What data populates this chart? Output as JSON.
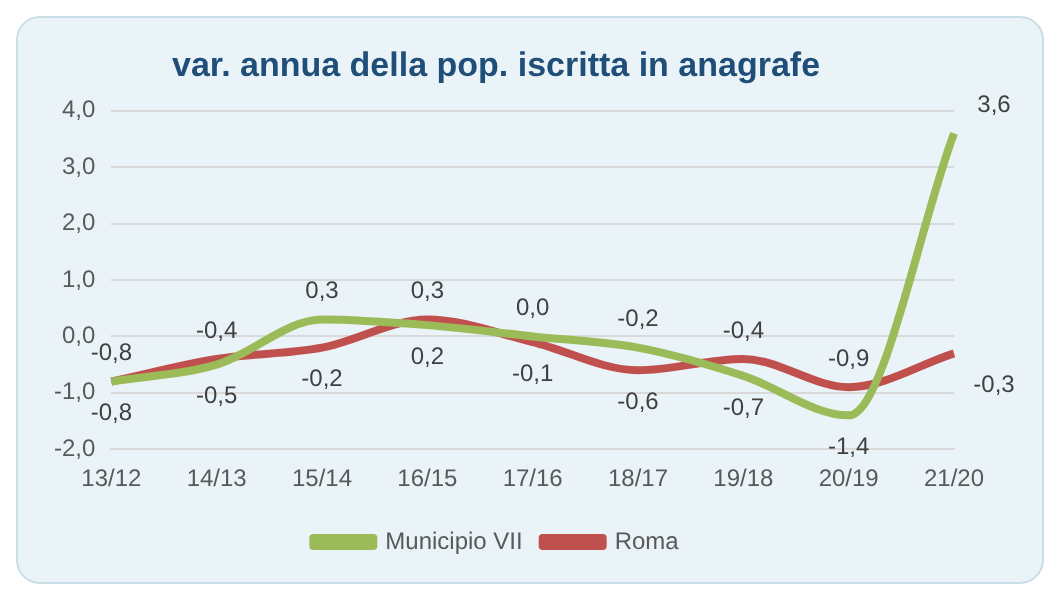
{
  "chart_data": {
    "type": "line",
    "title": "var. annua della pop. iscritta in anagrafe",
    "categories": [
      "13/12",
      "14/13",
      "15/14",
      "16/15",
      "17/16",
      "18/17",
      "19/18",
      "20/19",
      "21/20"
    ],
    "series": [
      {
        "name": "Municipio VII",
        "color": "#9bbb59",
        "values": [
          -0.8,
          -0.5,
          0.3,
          0.2,
          0.0,
          -0.2,
          -0.7,
          -1.4,
          3.6
        ],
        "value_labels": [
          "-0,8",
          "-0,5",
          "0,3",
          "0,2",
          "0,0",
          "-0,2",
          "-0,7",
          "-1,4",
          "3,6"
        ]
      },
      {
        "name": "Roma",
        "color": "#c0504d",
        "values": [
          -0.8,
          -0.4,
          -0.2,
          0.3,
          -0.1,
          -0.6,
          -0.4,
          -0.9,
          -0.3
        ],
        "value_labels": [
          "-0,8",
          "-0,4",
          "-0,2",
          "0,3",
          "-0,1",
          "-0,6",
          "-0,4",
          "-0,9",
          "-0,3"
        ]
      }
    ],
    "ylim": [
      -2,
      4
    ],
    "yticks": [
      {
        "value": -2,
        "label": "-2,0"
      },
      {
        "value": -1,
        "label": "-1,0"
      },
      {
        "value": 0,
        "label": "0,0"
      },
      {
        "value": 1,
        "label": "1,0"
      },
      {
        "value": 2,
        "label": "2,0"
      },
      {
        "value": 3,
        "label": "3,0"
      },
      {
        "value": 4,
        "label": "4,0"
      }
    ],
    "grid": "y",
    "legend": "bottom",
    "marker": "none"
  }
}
